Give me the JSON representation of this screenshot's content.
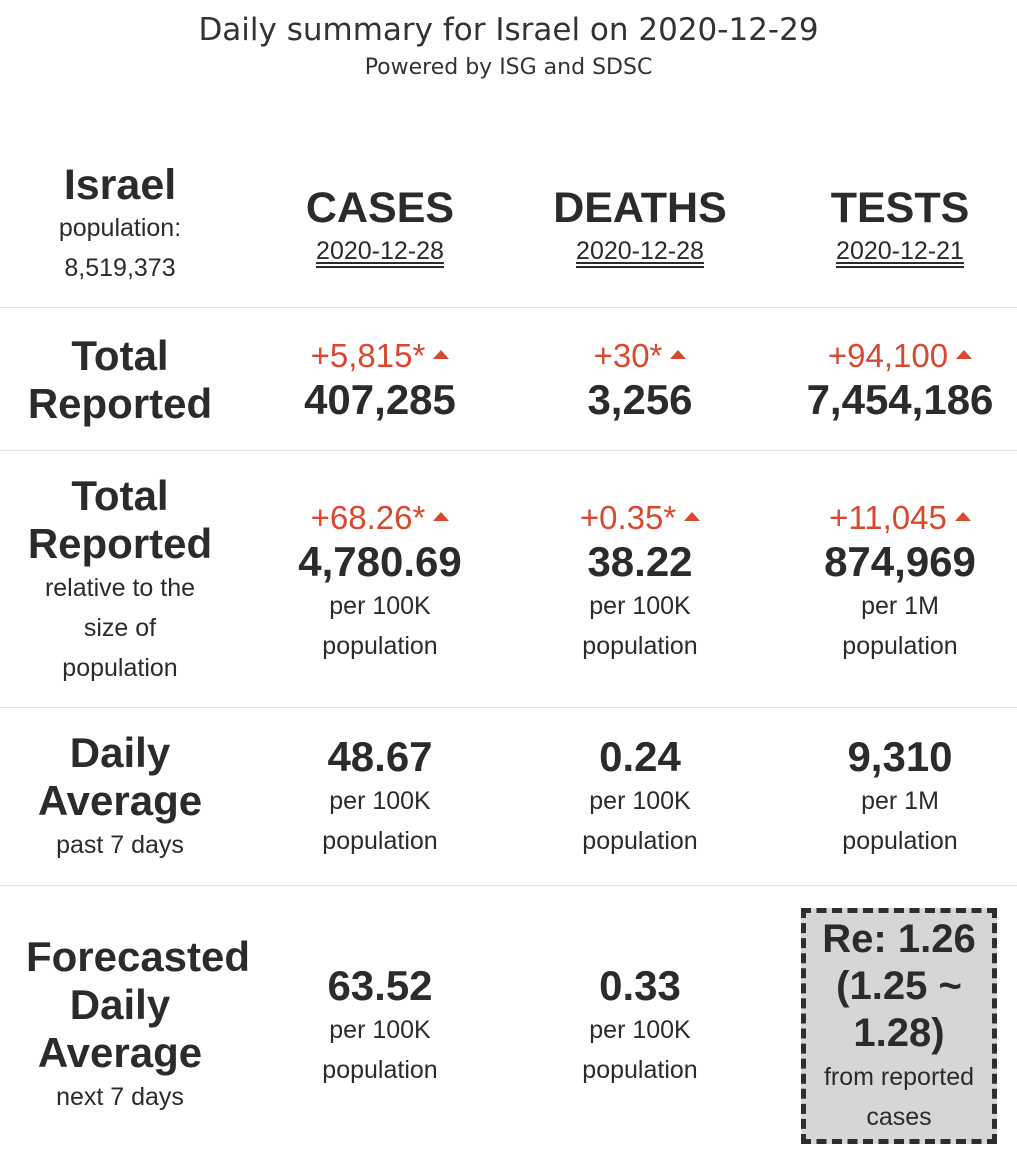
{
  "header": {
    "title": "Daily summary for Israel on 2020-12-29",
    "subtitle": "Powered by ISG and SDSC"
  },
  "region": {
    "name": "Israel",
    "population_label": "population:",
    "population": "8,519,373"
  },
  "columns": [
    {
      "name": "CASES",
      "date": "2020-12-28"
    },
    {
      "name": "DEATHS",
      "date": "2020-12-28"
    },
    {
      "name": "TESTS",
      "date": "2020-12-21"
    }
  ],
  "total_reported": {
    "label_line1": "Total",
    "label_line2": "Reported",
    "cases": {
      "delta": "+5,815*",
      "value": "407,285"
    },
    "deaths": {
      "delta": "+30*",
      "value": "3,256"
    },
    "tests": {
      "delta": "+94,100",
      "value": "7,454,186"
    }
  },
  "relative": {
    "label_line1": "Total",
    "label_line2": "Reported",
    "sub_line1": "relative to the",
    "sub_line2": "size of",
    "sub_line3": "population",
    "cases": {
      "delta": "+68.26*",
      "value": "4,780.69",
      "unit1": "per 100K",
      "unit2": "population"
    },
    "deaths": {
      "delta": "+0.35*",
      "value": "38.22",
      "unit1": "per 100K",
      "unit2": "population"
    },
    "tests": {
      "delta": "+11,045",
      "value": "874,969",
      "unit1": "per 1M",
      "unit2": "population"
    }
  },
  "daily_average": {
    "label_line1": "Daily",
    "label_line2": "Average",
    "sub": "past 7 days",
    "cases": {
      "value": "48.67",
      "unit1": "per 100K",
      "unit2": "population"
    },
    "deaths": {
      "value": "0.24",
      "unit1": "per 100K",
      "unit2": "population"
    },
    "tests": {
      "value": "9,310",
      "unit1": "per 1M",
      "unit2": "population"
    }
  },
  "forecast": {
    "label_line1": "Forecasted",
    "label_line2": "Daily",
    "label_line3": "Average",
    "sub": "next 7 days",
    "cases": {
      "value": "63.52",
      "unit1": "per 100K",
      "unit2": "population"
    },
    "deaths": {
      "value": "0.33",
      "unit1": "per 100K",
      "unit2": "population"
    },
    "re": {
      "line1": "Re: 1.26",
      "line2": "(1.25 ~",
      "line3": "1.28)",
      "src1": "from reported",
      "src2": "cases"
    }
  },
  "colors": {
    "accent_delta": "#d9482f",
    "re_box_bg": "#d6d6d6"
  },
  "icons": {
    "increase": "triangle-up-icon"
  }
}
